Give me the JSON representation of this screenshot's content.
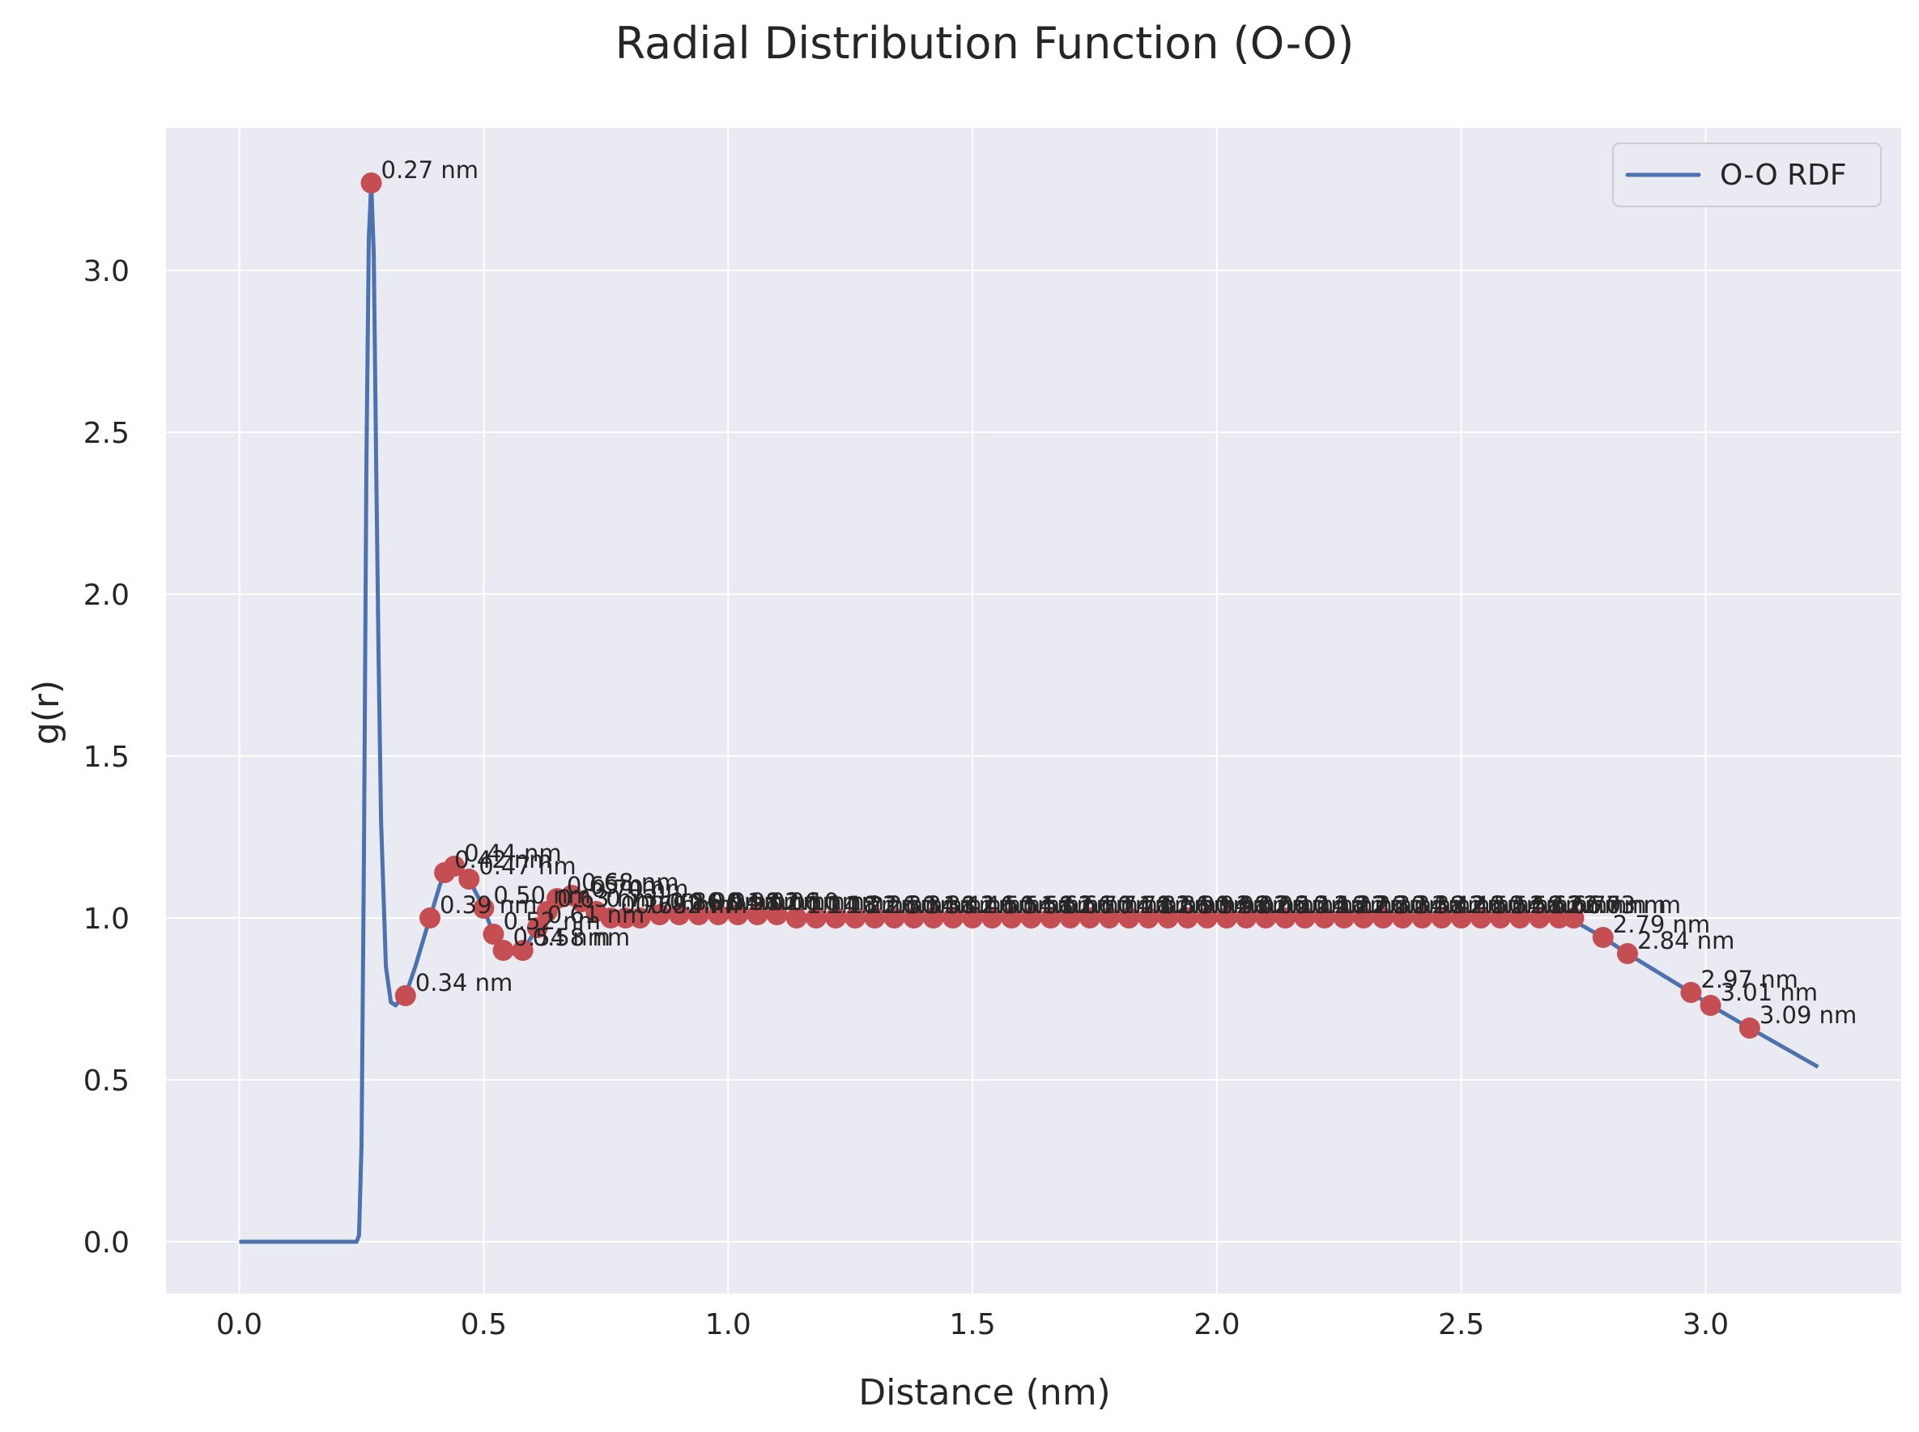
{
  "chart_data": {
    "type": "line",
    "title": "Radial Distribution Function (O-O)",
    "xlabel": "Distance (nm)",
    "ylabel": "g(r)",
    "xlim": [
      -0.15,
      3.4
    ],
    "ylim": [
      -0.16,
      3.44
    ],
    "xticks": [
      0.0,
      0.5,
      1.0,
      1.5,
      2.0,
      2.5,
      3.0
    ],
    "xtick_labels": [
      "0.0",
      "0.5",
      "1.0",
      "1.5",
      "2.0",
      "2.5",
      "3.0"
    ],
    "yticks": [
      0.0,
      0.5,
      1.0,
      1.5,
      2.0,
      2.5,
      3.0
    ],
    "ytick_labels": [
      "0.0",
      "0.5",
      "1.0",
      "1.5",
      "2.0",
      "2.5",
      "3.0"
    ],
    "grid": true,
    "legend_position": "top-right",
    "colors": {
      "background": "#eaeaf2",
      "grid": "#ffffff",
      "line": "#4c72b0",
      "marker": "#c44e52",
      "text": "#262626"
    },
    "series": [
      {
        "name": "O-O RDF",
        "x": [
          0.0,
          0.24,
          0.245,
          0.25,
          0.255,
          0.26,
          0.265,
          0.27,
          0.275,
          0.28,
          0.285,
          0.29,
          0.3,
          0.31,
          0.32,
          0.33,
          0.34,
          0.36,
          0.38,
          0.39,
          0.41,
          0.42,
          0.44,
          0.47,
          0.5,
          0.52,
          0.54,
          0.56,
          0.58,
          0.61,
          0.63,
          0.65,
          0.67,
          0.7,
          0.73,
          0.76,
          0.8,
          0.85,
          0.9,
          1.0,
          1.2,
          1.5,
          1.8,
          2.1,
          2.4,
          2.6,
          2.72,
          2.79,
          2.84,
          2.97,
          3.01,
          3.09,
          3.23
        ],
        "y": [
          0.0,
          0.0,
          0.02,
          0.3,
          1.2,
          2.4,
          3.1,
          3.27,
          3.05,
          2.4,
          1.8,
          1.3,
          0.85,
          0.74,
          0.73,
          0.75,
          0.76,
          0.85,
          0.95,
          1.0,
          1.1,
          1.14,
          1.16,
          1.12,
          1.03,
          0.95,
          0.9,
          0.89,
          0.9,
          0.97,
          1.02,
          1.06,
          1.07,
          1.05,
          1.02,
          1.0,
          1.0,
          1.01,
          1.01,
          1.005,
          1.0,
          1.0,
          1.0,
          1.0,
          1.0,
          1.0,
          1.0,
          0.94,
          0.89,
          0.77,
          0.73,
          0.66,
          0.54
        ]
      }
    ],
    "markers": [
      {
        "x": 0.27,
        "y": 3.27,
        "label": "0.27 nm"
      },
      {
        "x": 0.34,
        "y": 0.76,
        "label": "0.34 nm"
      },
      {
        "x": 0.39,
        "y": 1.0,
        "label": "0.39 nm"
      },
      {
        "x": 0.42,
        "y": 1.14,
        "label": "0.42 nm"
      },
      {
        "x": 0.44,
        "y": 1.16,
        "label": "0.44 nm"
      },
      {
        "x": 0.47,
        "y": 1.12,
        "label": "0.47 nm"
      },
      {
        "x": 0.5,
        "y": 1.03,
        "label": "0.50 nm"
      },
      {
        "x": 0.52,
        "y": 0.95,
        "label": "0.52 nm"
      },
      {
        "x": 0.54,
        "y": 0.9,
        "label": "0.54 nm"
      },
      {
        "x": 0.58,
        "y": 0.9,
        "label": "0.58 nm"
      },
      {
        "x": 0.61,
        "y": 0.97,
        "label": "0.61 nm"
      },
      {
        "x": 0.63,
        "y": 1.02,
        "label": "0.63 nm"
      },
      {
        "x": 0.65,
        "y": 1.06,
        "label": "0.65 nm"
      },
      {
        "x": 0.68,
        "y": 1.07,
        "label": "0.68 nm"
      },
      {
        "x": 0.7,
        "y": 1.05,
        "label": "0.70 nm"
      },
      {
        "x": 0.73,
        "y": 1.02,
        "label": "0.73 nm"
      },
      {
        "x": 0.76,
        "y": 1.0,
        "label": "0.76 nm"
      },
      {
        "x": 0.79,
        "y": 1.0,
        "label": "0.79 nm"
      },
      {
        "x": 0.82,
        "y": 1.0,
        "label": "0.82 nm"
      },
      {
        "x": 0.86,
        "y": 1.01,
        "label": "0.86 nm"
      },
      {
        "x": 0.9,
        "y": 1.01,
        "label": "0.90 nm"
      },
      {
        "x": 0.94,
        "y": 1.01,
        "label": "0.94 nm"
      },
      {
        "x": 0.98,
        "y": 1.01,
        "label": "0.98 nm"
      },
      {
        "x": 1.02,
        "y": 1.01,
        "label": "1.02 nm"
      },
      {
        "x": 1.06,
        "y": 1.01,
        "label": "1.06 nm"
      },
      {
        "x": 1.1,
        "y": 1.01,
        "label": "1.10 nm"
      },
      {
        "x": 1.14,
        "y": 1.0,
        "label": "1.14 nm"
      },
      {
        "x": 1.18,
        "y": 1.0,
        "label": "1.18 nm"
      },
      {
        "x": 1.22,
        "y": 1.0,
        "label": "1.22 nm"
      },
      {
        "x": 1.26,
        "y": 1.0,
        "label": "1.26 nm"
      },
      {
        "x": 1.3,
        "y": 1.0,
        "label": "1.30 nm"
      },
      {
        "x": 1.34,
        "y": 1.0,
        "label": "1.34 nm"
      },
      {
        "x": 1.38,
        "y": 1.0,
        "label": "1.38 nm"
      },
      {
        "x": 1.42,
        "y": 1.0,
        "label": "1.42 nm"
      },
      {
        "x": 1.46,
        "y": 1.0,
        "label": "1.46 nm"
      },
      {
        "x": 1.5,
        "y": 1.0,
        "label": "1.50 nm"
      },
      {
        "x": 1.54,
        "y": 1.0,
        "label": "1.54 nm"
      },
      {
        "x": 1.58,
        "y": 1.0,
        "label": "1.58 nm"
      },
      {
        "x": 1.62,
        "y": 1.0,
        "label": "1.62 nm"
      },
      {
        "x": 1.66,
        "y": 1.0,
        "label": "1.66 nm"
      },
      {
        "x": 1.7,
        "y": 1.0,
        "label": "1.70 nm"
      },
      {
        "x": 1.74,
        "y": 1.0,
        "label": "1.74 nm"
      },
      {
        "x": 1.78,
        "y": 1.0,
        "label": "1.78 nm"
      },
      {
        "x": 1.82,
        "y": 1.0,
        "label": "1.82 nm"
      },
      {
        "x": 1.86,
        "y": 1.0,
        "label": "1.86 nm"
      },
      {
        "x": 1.9,
        "y": 1.0,
        "label": "1.90 nm"
      },
      {
        "x": 1.94,
        "y": 1.0,
        "label": "1.94 nm"
      },
      {
        "x": 1.98,
        "y": 1.0,
        "label": "1.98 nm"
      },
      {
        "x": 2.02,
        "y": 1.0,
        "label": "2.02 nm"
      },
      {
        "x": 2.06,
        "y": 1.0,
        "label": "2.06 nm"
      },
      {
        "x": 2.1,
        "y": 1.0,
        "label": "2.10 nm"
      },
      {
        "x": 2.14,
        "y": 1.0,
        "label": "2.14 nm"
      },
      {
        "x": 2.18,
        "y": 1.0,
        "label": "2.18 nm"
      },
      {
        "x": 2.22,
        "y": 1.0,
        "label": "2.22 nm"
      },
      {
        "x": 2.26,
        "y": 1.0,
        "label": "2.26 nm"
      },
      {
        "x": 2.3,
        "y": 1.0,
        "label": "2.30 nm"
      },
      {
        "x": 2.34,
        "y": 1.0,
        "label": "2.34 nm"
      },
      {
        "x": 2.38,
        "y": 1.0,
        "label": "2.38 nm"
      },
      {
        "x": 2.42,
        "y": 1.0,
        "label": "2.42 nm"
      },
      {
        "x": 2.46,
        "y": 1.0,
        "label": "2.46 nm"
      },
      {
        "x": 2.5,
        "y": 1.0,
        "label": "2.50 nm"
      },
      {
        "x": 2.54,
        "y": 1.0,
        "label": "2.54 nm"
      },
      {
        "x": 2.58,
        "y": 1.0,
        "label": "2.58 nm"
      },
      {
        "x": 2.62,
        "y": 1.0,
        "label": "2.62 nm"
      },
      {
        "x": 2.66,
        "y": 1.0,
        "label": "2.66 nm"
      },
      {
        "x": 2.7,
        "y": 1.0,
        "label": "2.70 nm"
      },
      {
        "x": 2.73,
        "y": 1.0,
        "label": "2.73 nm"
      },
      {
        "x": 2.79,
        "y": 0.94,
        "label": "2.79 nm"
      },
      {
        "x": 2.84,
        "y": 0.89,
        "label": "2.84 nm"
      },
      {
        "x": 2.97,
        "y": 0.77,
        "label": "2.97 nm"
      },
      {
        "x": 3.01,
        "y": 0.73,
        "label": "3.01 nm"
      },
      {
        "x": 3.09,
        "y": 0.66,
        "label": "3.09 nm"
      }
    ]
  }
}
